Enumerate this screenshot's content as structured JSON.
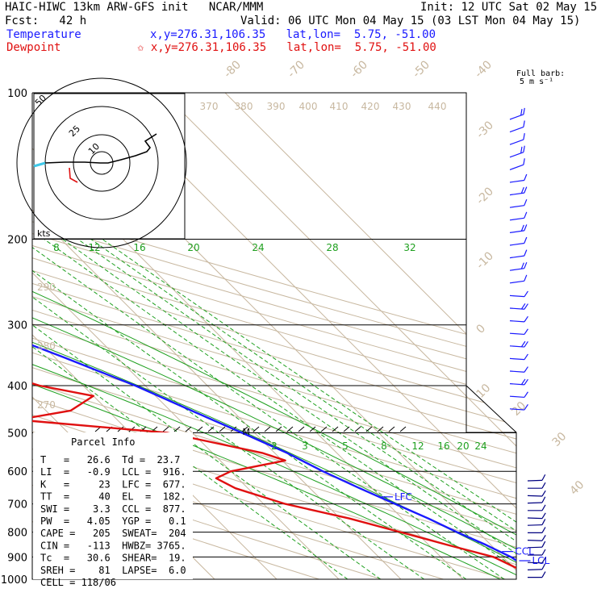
{
  "header": {
    "line1_left": "HAIC-HIWC 13km ARW-GFS init   NCAR/MMM",
    "line1_right": "Init: 12 UTC Sat 02 May 15",
    "line2_left": "Fcst:   42 h",
    "line2_right": "Valid: 06 UTC Mon 04 May 15 (03 LST Mon 04 May 15)",
    "temp_label": "Temperature",
    "temp_coords": "x,y=276.31,106.35   lat,lon=  5.75, -51.00",
    "dew_label": "Dewpoint",
    "dew_coords": "✩ x,y=276.31,106.35   lat,lon=  5.75, -51.00",
    "barb_legend_1": "Full barb:",
    "barb_legend_2": "5 m s⁻¹"
  },
  "colors": {
    "temperature": "#1a1aff",
    "dewpoint": "#e01010",
    "isotherm": "#c8b8a0",
    "mixing_ratio": "#1fa01f",
    "hodo_line": "#000000",
    "hodo_start": "#40c8e8"
  },
  "chart_data": {
    "type": "skew-T log-p",
    "pressure_levels": [
      100,
      200,
      300,
      400,
      500,
      600,
      700,
      800,
      900,
      1000
    ],
    "isotherm_labels": [
      "-80",
      "-70",
      "-60",
      "-50",
      "-40",
      "-30",
      "-20",
      "-10",
      "0",
      "10",
      "20",
      "30",
      "40"
    ],
    "theta_labels": [
      "370",
      "380",
      "390",
      "400",
      "410",
      "420",
      "430",
      "440"
    ],
    "theta_left_labels": [
      "290",
      "280",
      "270"
    ],
    "mixing_ratio_upper_labels": [
      "8",
      "12",
      "16",
      "20",
      "24",
      "28",
      "32"
    ],
    "mixing_ratio_lower_labels": [
      "2",
      "3",
      "5",
      "8",
      "12",
      "16",
      "20",
      "24"
    ],
    "temperature_profile": [
      {
        "p": 1000,
        "t": 26.6
      },
      {
        "p": 975,
        "t": 24.4
      },
      {
        "p": 950,
        "t": 22.6
      },
      {
        "p": 925,
        "t": 21.8
      },
      {
        "p": 900,
        "t": 21.3
      },
      {
        "p": 850,
        "t": 19.2
      },
      {
        "p": 800,
        "t": 16.6
      },
      {
        "p": 750,
        "t": 14.2
      },
      {
        "p": 700,
        "t": 11.2
      },
      {
        "p": 650,
        "t": 8.0
      },
      {
        "p": 600,
        "t": 4.8
      },
      {
        "p": 550,
        "t": 2.0
      },
      {
        "p": 500,
        "t": -2.0
      },
      {
        "p": 450,
        "t": -6.6
      },
      {
        "p": 400,
        "t": -11.6
      },
      {
        "p": 350,
        "t": -18.5
      },
      {
        "p": 300,
        "t": -27.0
      },
      {
        "p": 250,
        "t": -38.0
      },
      {
        "p": 200,
        "t": -51.5
      },
      {
        "p": 175,
        "t": -59.5
      },
      {
        "p": 150,
        "t": -68.0
      },
      {
        "p": 125,
        "t": -74.5
      },
      {
        "p": 100,
        "t": -79.0
      }
    ],
    "dewpoint_profile": [
      {
        "p": 1000,
        "t": 23.7
      },
      {
        "p": 975,
        "t": 21.5
      },
      {
        "p": 950,
        "t": 20.5
      },
      {
        "p": 900,
        "t": 18.5
      },
      {
        "p": 850,
        "t": 13.0
      },
      {
        "p": 800,
        "t": 7.5
      },
      {
        "p": 750,
        "t": 1.5
      },
      {
        "p": 700,
        "t": -6.5
      },
      {
        "p": 650,
        "t": -12.0
      },
      {
        "p": 620,
        "t": -13.5
      },
      {
        "p": 600,
        "t": -10.0
      },
      {
        "p": 570,
        "t": 0.5
      },
      {
        "p": 550,
        "t": -2.0
      },
      {
        "p": 500,
        "t": -14.0
      },
      {
        "p": 470,
        "t": -36.0
      },
      {
        "p": 450,
        "t": -26.0
      },
      {
        "p": 420,
        "t": -20.0
      },
      {
        "p": 400,
        "t": -27.0
      },
      {
        "p": 370,
        "t": -33.0
      },
      {
        "p": 340,
        "t": -28.0
      },
      {
        "p": 320,
        "t": -38.0
      },
      {
        "p": 300,
        "t": -41.0
      },
      {
        "p": 270,
        "t": -38.0
      },
      {
        "p": 250,
        "t": -45.0
      },
      {
        "p": 220,
        "t": -59.0
      },
      {
        "p": 200,
        "t": -61.0
      },
      {
        "p": 185,
        "t": -58.0
      },
      {
        "p": 170,
        "t": -60.0
      },
      {
        "p": 150,
        "t": -68.0
      },
      {
        "p": 130,
        "t": -76.0
      },
      {
        "p": 110,
        "t": -80.0
      },
      {
        "p": 100,
        "t": -82.0
      }
    ],
    "level_markers": [
      {
        "label": "EL",
        "p": 182
      },
      {
        "label": "M",
        "p": 497
      },
      {
        "label": "LFC",
        "p": 677
      },
      {
        "label": "CCL",
        "p": 877
      },
      {
        "label": "LCL",
        "p": 916
      }
    ],
    "parcel_info": {
      "title": "Parcel Info",
      "rows": [
        "T   =   26.6  Td =  23.7",
        "LI  =   -0.9  LCL =  916.",
        "K   =     23  LFC =  677.",
        "TT  =     40  EL  =  182.",
        "SWI =    3.3  CCL =  877.",
        "PW  =   4.05  YGP =   0.1",
        "CAPE =   205  SWEAT=  204",
        "CIN =   -113  HWBZ= 3765.",
        "Tc  =   30.6  SHEAR=  19.",
        "SREH =    81  LAPSE=  6.0",
        "CELL = 118/06"
      ]
    },
    "hodograph": {
      "ring_labels": [
        "10",
        "25",
        "50"
      ],
      "unit_label": "kts"
    }
  }
}
